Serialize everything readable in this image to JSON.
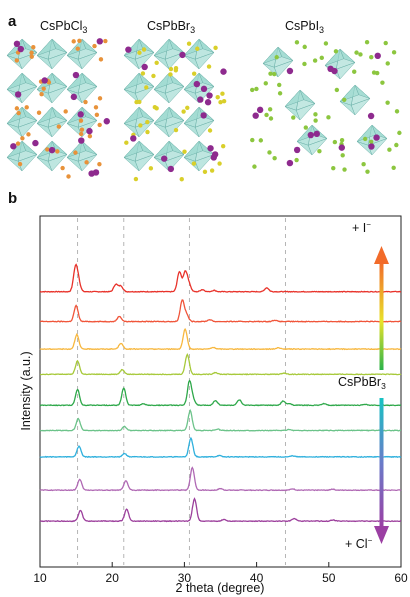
{
  "panels": {
    "a": "a",
    "b": "b"
  },
  "structures": [
    {
      "base": "CsPbCl",
      "sub": "3",
      "atom_color": "#e8923a"
    },
    {
      "base": "CsPbBr",
      "sub": "3",
      "atom_color": "#d9cf2a"
    },
    {
      "base": "CsPbI",
      "sub": "3",
      "atom_color": "#8cc63f"
    }
  ],
  "annotations": {
    "top": {
      "base": "+ I",
      "sup": "−",
      "color": "#f26b2a"
    },
    "middle": {
      "base": "CsPbBr",
      "sub": "3",
      "color": "#1aa34a"
    },
    "bottom": {
      "base": "+ Cl",
      "sup": "−",
      "color": "#8e3c8e"
    }
  },
  "colors": {
    "octahedron": "#9ad8cf",
    "cs_atom": "#8e2a8e",
    "arrow_top": "#f5a623",
    "arrow_mid": "#17c3c3",
    "arrow_bottom": "#9b3fa3"
  },
  "chart_data": {
    "type": "line",
    "title": "",
    "xlabel": "2 theta (degree)",
    "ylabel": "Intensity (a.u.)",
    "xlim": [
      10,
      60
    ],
    "xticks": [
      10,
      20,
      30,
      40,
      50,
      60
    ],
    "reference_lines_x": [
      15.2,
      21.6,
      30.7,
      44.0
    ],
    "series": [
      {
        "color": "#e8322a",
        "baseline": 12.0,
        "peaks": [
          [
            14.9,
            8.5
          ],
          [
            15.3,
            4.0
          ],
          [
            20.5,
            2.8
          ],
          [
            21.2,
            2.2
          ],
          [
            29.3,
            7.5
          ],
          [
            30.1,
            7.2
          ],
          [
            30.6,
            3.0
          ],
          [
            32.5,
            0.8
          ],
          [
            34.1,
            0.5
          ],
          [
            41.4,
            1.5
          ]
        ]
      },
      {
        "color": "#f0553a",
        "baseline": 10.7,
        "peaks": [
          [
            15.0,
            6.0
          ],
          [
            21.0,
            2.0
          ],
          [
            29.7,
            8.0
          ],
          [
            30.3,
            2.5
          ],
          [
            33.5,
            0.7
          ],
          [
            42.5,
            0.5
          ]
        ]
      },
      {
        "color": "#f7b73e",
        "baseline": 9.5,
        "peaks": [
          [
            15.1,
            5.5
          ],
          [
            21.2,
            2.2
          ],
          [
            30.1,
            7.5
          ],
          [
            34.0,
            0.6
          ],
          [
            43.0,
            0.5
          ]
        ]
      },
      {
        "color": "#a7c93a",
        "baseline": 8.4,
        "peaks": [
          [
            15.2,
            5.0
          ],
          [
            21.4,
            1.8
          ],
          [
            30.4,
            7.5
          ],
          [
            34.3,
            0.7
          ],
          [
            43.8,
            0.5
          ]
        ]
      },
      {
        "color": "#2ea84a",
        "baseline": 7.05,
        "peaks": [
          [
            15.2,
            6.0
          ],
          [
            21.6,
            6.5
          ],
          [
            24.3,
            0.5
          ],
          [
            30.7,
            9.0
          ],
          [
            31.2,
            2.0
          ],
          [
            34.3,
            1.8
          ],
          [
            37.6,
            2.0
          ],
          [
            43.7,
            1.6
          ],
          [
            44.6,
            0.6
          ],
          [
            49.3,
            0.6
          ],
          [
            55.0,
            0.4
          ]
        ]
      },
      {
        "color": "#6cc38a",
        "baseline": 5.95,
        "peaks": [
          [
            15.3,
            4.5
          ],
          [
            21.7,
            1.5
          ],
          [
            30.8,
            7.5
          ],
          [
            34.6,
            0.5
          ],
          [
            44.5,
            0.4
          ]
        ]
      },
      {
        "color": "#2fb0dd",
        "baseline": 4.8,
        "peaks": [
          [
            15.4,
            4.0
          ],
          [
            21.7,
            1.3
          ],
          [
            30.9,
            7.0
          ],
          [
            34.8,
            0.5
          ],
          [
            45.0,
            0.4
          ]
        ]
      },
      {
        "color": "#b069b4",
        "baseline": 3.35,
        "peaks": [
          [
            15.5,
            4.0
          ],
          [
            21.9,
            3.5
          ],
          [
            31.1,
            8.5
          ],
          [
            35.0,
            0.6
          ],
          [
            45.0,
            0.5
          ],
          [
            50.5,
            0.4
          ]
        ]
      },
      {
        "color": "#9c3f9c",
        "baseline": 2.0,
        "peaks": [
          [
            15.6,
            4.0
          ],
          [
            22.0,
            4.5
          ],
          [
            31.4,
            8.5
          ],
          [
            35.5,
            0.6
          ],
          [
            45.2,
            1.0
          ],
          [
            50.6,
            0.4
          ]
        ]
      }
    ]
  }
}
